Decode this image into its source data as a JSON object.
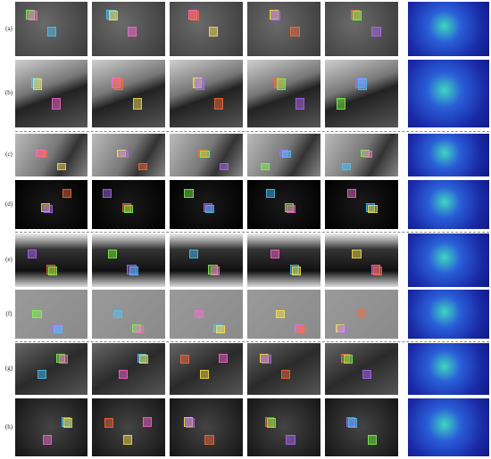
{
  "figure": {
    "row_labels": [
      "(a)",
      "(b)",
      "(c)",
      "(d)",
      "(e)",
      "(f)",
      "(g)",
      "(h)"
    ]
  }
}
